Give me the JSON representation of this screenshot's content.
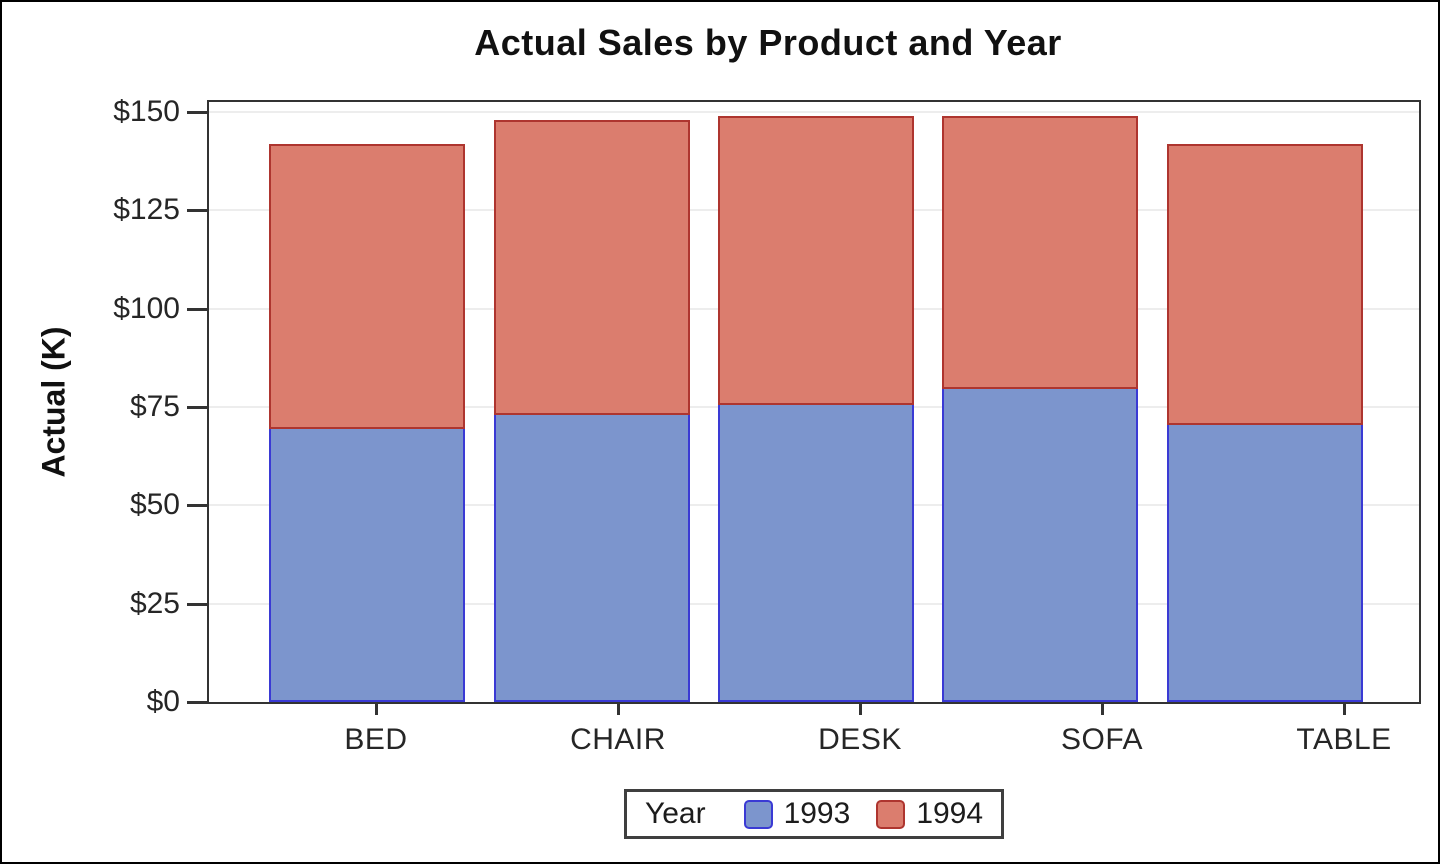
{
  "window": {
    "background": "#FFFFFF",
    "border_color": "#000000"
  },
  "chart_data": {
    "type": "bar",
    "stacked": true,
    "title": "Actual Sales by Product and Year",
    "xlabel": "",
    "ylabel": "Actual (K)",
    "categories": [
      "BED",
      "CHAIR",
      "DESK",
      "SOFA",
      "TABLE"
    ],
    "series": [
      {
        "name": "1993",
        "fill": "#7C95CD",
        "border": "#3A3AD4",
        "values": [
          69.5,
          73,
          75.5,
          79.5,
          70.5
        ]
      },
      {
        "name": "1994",
        "fill": "#DB7D6E",
        "border": "#AE352F",
        "values": [
          72.5,
          75,
          73.5,
          69.5,
          71.5
        ]
      }
    ],
    "ylim": [
      0,
      150
    ],
    "yticks": {
      "values": [
        0,
        25,
        50,
        75,
        100,
        125,
        150
      ],
      "labels": [
        "$0",
        "$25",
        "$50",
        "$75",
        "$100",
        "$125",
        "$150"
      ]
    },
    "grid": true,
    "grid_color": "#EDEDED",
    "frame_color": "#333333",
    "text_color": "#1C1C1C",
    "legend": {
      "title": "Year",
      "position": "bottom",
      "entries": [
        "1993",
        "1994"
      ]
    }
  }
}
